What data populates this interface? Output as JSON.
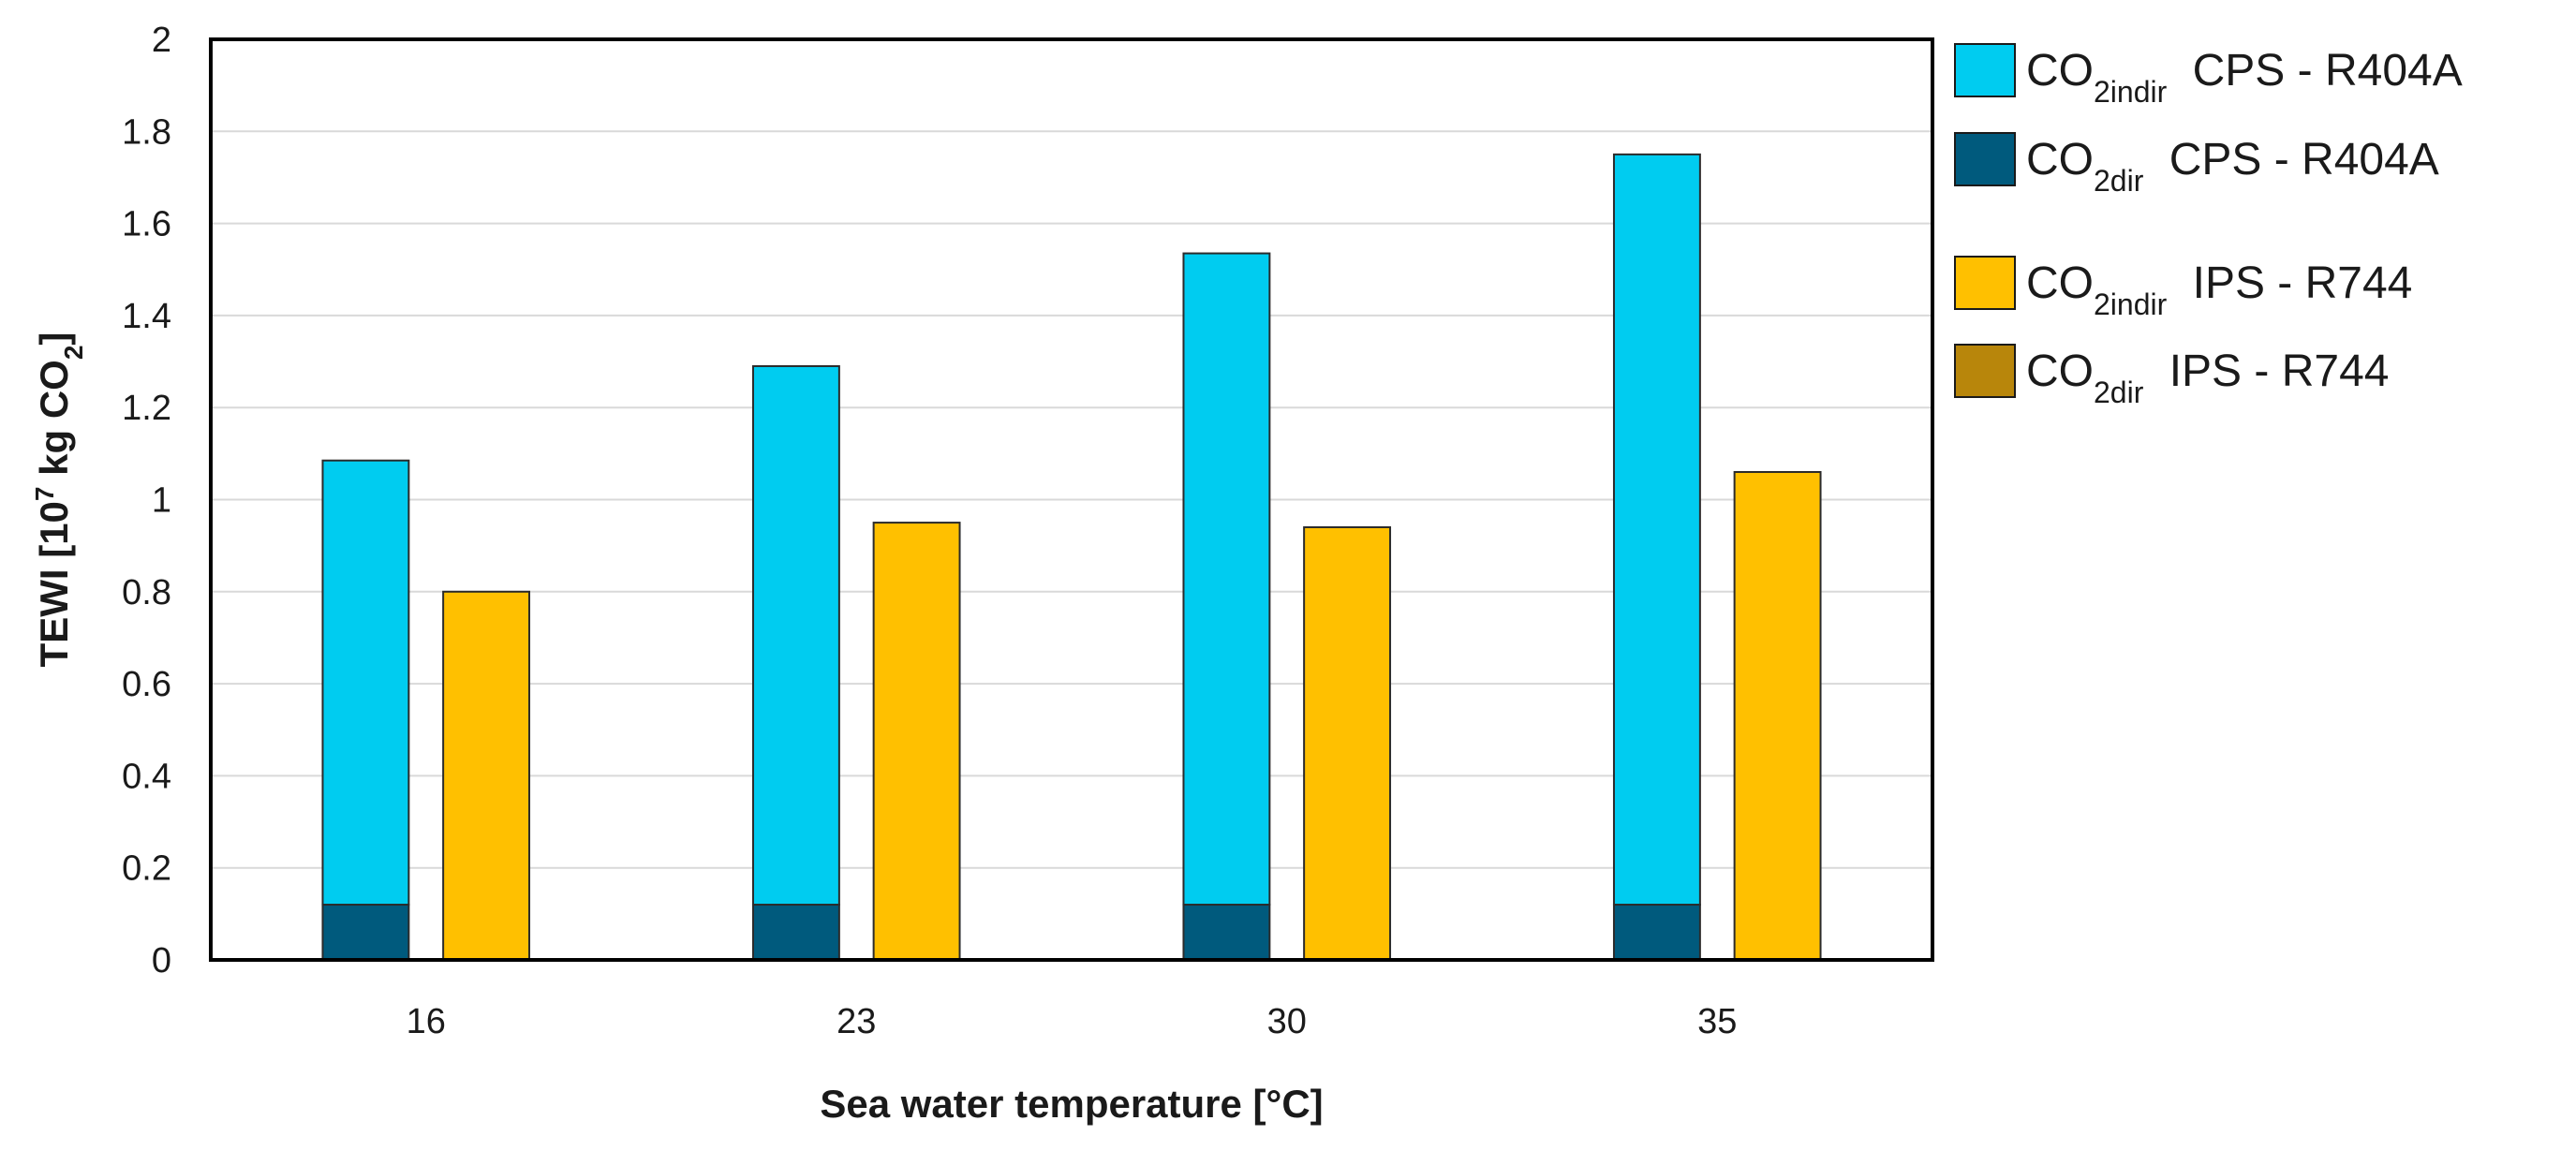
{
  "chart_data": {
    "type": "bar",
    "stacked": true,
    "x": {
      "title": "Sea water temperature [°C]",
      "categories": [
        "16",
        "23",
        "30",
        "35"
      ]
    },
    "y": {
      "title_parts": {
        "base": "TEWI [10",
        "exp": "7",
        "mid": " kg CO",
        "sub": "2",
        "end": "]"
      },
      "range": [
        0,
        2
      ],
      "ticks": [
        "0",
        "0.2",
        "0.4",
        "0.6",
        "0.8",
        "1",
        "1.2",
        "1.4",
        "1.6",
        "1.8",
        "2"
      ]
    },
    "grid": true,
    "legend_position": "right",
    "groups": [
      {
        "name": "CPS - R404A",
        "series": [
          {
            "key": "cps_dir",
            "values": [
              0.12,
              0.12,
              0.12,
              0.12
            ]
          },
          {
            "key": "cps_indir",
            "values": [
              0.965,
              1.17,
              1.415,
              1.63
            ]
          }
        ]
      },
      {
        "name": "IPS - R744",
        "series": [
          {
            "key": "ips_dir",
            "values": [
              0,
              0,
              0,
              0
            ]
          },
          {
            "key": "ips_indir",
            "values": [
              0.8,
              0.95,
              0.94,
              1.06
            ]
          }
        ]
      }
    ],
    "legend": [
      {
        "key": "cps_indir",
        "main": "CO",
        "sub": "2indir",
        "rest": " CPS - R404A",
        "color": "#00CCF0"
      },
      {
        "key": "cps_dir",
        "main": "CO",
        "sub": "2dir",
        "rest": " CPS - R404A",
        "color": "#005A7D"
      },
      {
        "key": "ips_indir",
        "main": "CO",
        "sub": "2indir",
        "rest": " IPS - R744",
        "color": "#FFC000"
      },
      {
        "key": "ips_dir",
        "main": "CO",
        "sub": "2dir",
        "rest": " IPS - R744",
        "color": "#B8860B"
      }
    ]
  }
}
